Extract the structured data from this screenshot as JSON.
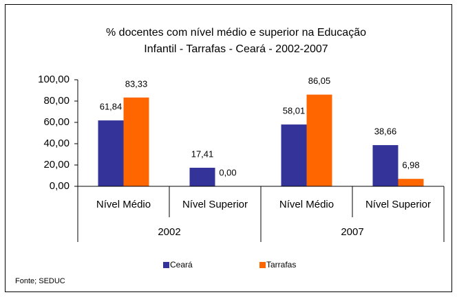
{
  "chart_data": {
    "type": "bar",
    "title": [
      "% docentes com nível médio e superior na  Educação",
      "Infantil - Tarrafas  - Ceará - 2002-2007"
    ],
    "categories": [
      "Nível Médio",
      "Nível Superior",
      "Nível Médio",
      "Nível Superior"
    ],
    "groups": [
      "2002",
      "2007"
    ],
    "series": [
      {
        "name": "Ceará",
        "color": "#333399",
        "values": [
          61.84,
          17.41,
          58.01,
          38.66
        ],
        "value_labels": [
          "61,84",
          "17,41",
          "58,01",
          "38,66"
        ]
      },
      {
        "name": "Tarrafas",
        "color": "#ff6600",
        "values": [
          83.33,
          0,
          86.05,
          6.98
        ],
        "value_labels": [
          "83,33",
          "0,00",
          "86,05",
          "6,98"
        ]
      }
    ],
    "ylim": [
      0,
      100
    ],
    "yticks": [
      {
        "value": 0,
        "label": "0,00"
      },
      {
        "value": 20,
        "label": "20,00"
      },
      {
        "value": 40,
        "label": "40,00"
      },
      {
        "value": 60,
        "label": "60,00"
      },
      {
        "value": 80,
        "label": "80,00"
      },
      {
        "value": 100,
        "label": "100,00"
      }
    ],
    "grid": false,
    "legend": "bottom",
    "footnote": "Fonte; SEDUC"
  }
}
